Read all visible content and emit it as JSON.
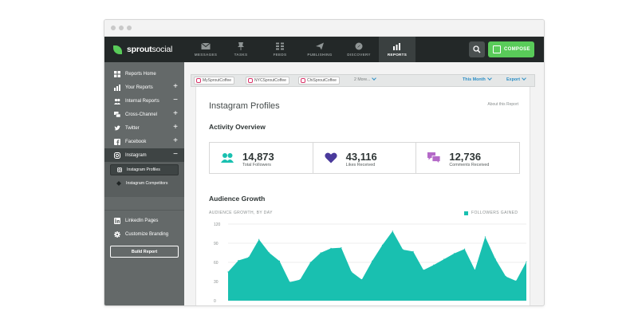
{
  "brand": {
    "name_bold": "sprout",
    "name_rest": "social",
    "leaf_color": "#59cb59"
  },
  "topnav": {
    "items": [
      {
        "label": "MESSAGES",
        "icon": "envelope-icon"
      },
      {
        "label": "TASKS",
        "icon": "pin-icon"
      },
      {
        "label": "FEEDS",
        "icon": "feeds-icon"
      },
      {
        "label": "PUBLISHING",
        "icon": "paper-plane-icon"
      },
      {
        "label": "DISCOVERY",
        "icon": "compass-icon"
      },
      {
        "label": "REPORTS",
        "icon": "bar-chart-icon",
        "active": true
      }
    ],
    "compose_label": "COMPOSE"
  },
  "sidebar": {
    "items": [
      {
        "label": "Reports Home",
        "icon": "grid-icon",
        "sign": ""
      },
      {
        "label": "Your Reports",
        "icon": "bars-icon",
        "sign": "+"
      },
      {
        "label": "Internal Reports",
        "icon": "people-icon",
        "sign": "−"
      },
      {
        "label": "Cross-Channel",
        "icon": "chat-icon",
        "sign": "+"
      },
      {
        "label": "Twitter",
        "icon": "twitter-icon",
        "sign": "+"
      },
      {
        "label": "Facebook",
        "icon": "facebook-icon",
        "sign": "+"
      },
      {
        "label": "Instagram",
        "icon": "instagram-icon",
        "sign": "−"
      }
    ],
    "subitems": [
      {
        "label": "Instagram Profiles",
        "icon": "instagram-icon",
        "selected": true
      },
      {
        "label": "Instagram Competitors",
        "icon": "diamond-icon"
      }
    ],
    "lower_items": [
      {
        "label": "LinkedIn Pages",
        "icon": "linkedin-icon"
      },
      {
        "label": "Customize Branding",
        "icon": "gear-icon"
      }
    ],
    "build_label": "Build Report"
  },
  "toolbar": {
    "profiles": [
      "MySproutCoffee",
      "NYCSproutCoffee",
      "ChiSproutCoffee"
    ],
    "more": "2 More...",
    "date_range": "This Month",
    "export": "Export"
  },
  "report": {
    "title": "Instagram Profiles",
    "about_link": "About this Report",
    "activity_title": "Activity Overview",
    "stats": [
      {
        "value": "14,873",
        "label": "Total Followers",
        "icon": "users-icon",
        "color": "#19c0b0"
      },
      {
        "value": "43,116",
        "label": "Likes Received",
        "icon": "heart-icon",
        "color": "#4a3a9c"
      },
      {
        "value": "12,736",
        "label": "Comments Received",
        "icon": "comments-icon",
        "color": "#b469c8"
      }
    ],
    "growth_title": "Audience Growth",
    "chart_subtitle": "AUDIENCE GROWTH, BY DAY",
    "legend_label": "FOLLOWERS GAINED"
  },
  "chart_data": {
    "type": "area",
    "title": "Audience Growth",
    "subtitle": "AUDIENCE GROWTH, BY DAY",
    "xlabel": "",
    "ylabel": "",
    "ylim": [
      0,
      120
    ],
    "yticks": [
      0,
      30,
      60,
      90,
      120
    ],
    "grid": true,
    "legend": "top-right",
    "series": [
      {
        "name": "FOLLOWERS GAINED",
        "color": "#19c0b0",
        "values": [
          45,
          63,
          68,
          96,
          75,
          62,
          29,
          33,
          60,
          75,
          82,
          83,
          45,
          33,
          62,
          87,
          109,
          80,
          77,
          48,
          56,
          65,
          74,
          81,
          48,
          100,
          65,
          38,
          31,
          61
        ]
      }
    ]
  }
}
